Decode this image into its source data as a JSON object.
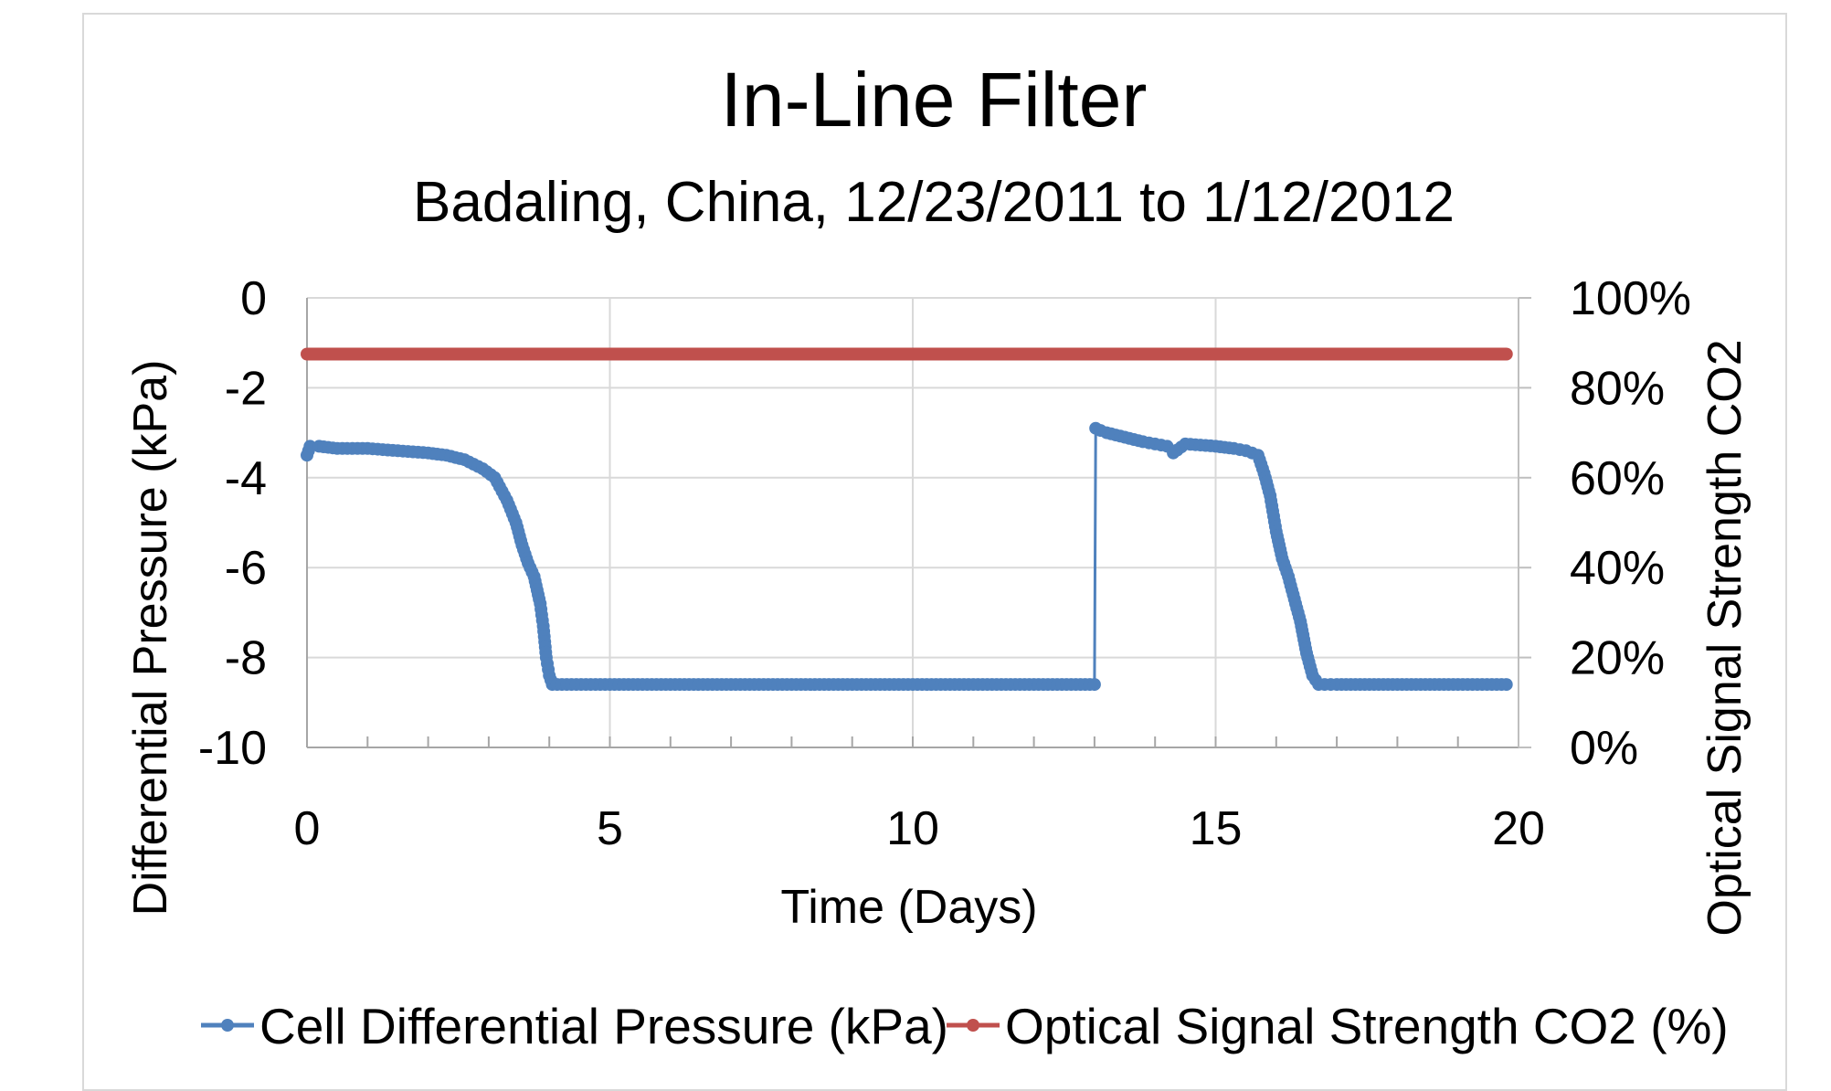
{
  "chart_data": {
    "type": "line",
    "title": "In-Line Filter",
    "subtitle": "Badaling, China, 12/23/2011 to 1/12/2012",
    "xlabel": "Time (Days)",
    "ylabel": "Differential Pressure (kPa)",
    "y2label": "Optical Signal Strength CO2",
    "xlim": [
      0,
      20
    ],
    "ylim": [
      -10,
      0
    ],
    "y2lim": [
      0,
      100
    ],
    "x_ticks": [
      "0",
      "5",
      "10",
      "15",
      "20"
    ],
    "y_ticks": [
      "0",
      "-2",
      "-4",
      "-6",
      "-8",
      "-10"
    ],
    "y2_ticks": [
      "100%",
      "80%",
      "60%",
      "40%",
      "20%",
      "0%"
    ],
    "grid": true,
    "legend_position": "bottom",
    "series": [
      {
        "name": "Cell Differential Pressure (kPa)",
        "axis": "left",
        "color": "#4f81bd",
        "marker": "circle",
        "x": [
          0.0,
          0.05,
          0.2,
          0.5,
          1.0,
          1.5,
          2.0,
          2.3,
          2.6,
          2.9,
          3.1,
          3.3,
          3.45,
          3.55,
          3.65,
          3.75,
          3.85,
          3.9,
          3.95,
          4.0,
          4.05,
          5.0,
          7.0,
          9.0,
          11.0,
          12.0,
          13.0,
          13.02,
          13.1,
          13.2,
          13.5,
          13.8,
          14.0,
          14.2,
          14.3,
          14.5,
          15.0,
          15.3,
          15.5,
          15.7,
          15.8,
          15.9,
          16.0,
          16.1,
          16.2,
          16.3,
          16.4,
          16.5,
          16.6,
          16.7,
          17.0,
          18.0,
          19.0,
          19.8
        ],
        "y": [
          -3.5,
          -3.3,
          -3.3,
          -3.35,
          -3.35,
          -3.4,
          -3.45,
          -3.5,
          -3.6,
          -3.8,
          -4.0,
          -4.5,
          -5.0,
          -5.5,
          -5.9,
          -6.2,
          -6.8,
          -7.3,
          -8.0,
          -8.4,
          -8.6,
          -8.6,
          -8.6,
          -8.6,
          -8.6,
          -8.6,
          -8.6,
          -2.9,
          -2.95,
          -3.0,
          -3.1,
          -3.2,
          -3.25,
          -3.3,
          -3.45,
          -3.25,
          -3.3,
          -3.35,
          -3.4,
          -3.5,
          -3.9,
          -4.4,
          -5.2,
          -5.8,
          -6.2,
          -6.7,
          -7.2,
          -7.9,
          -8.4,
          -8.6,
          -8.6,
          -8.6,
          -8.6,
          -8.6
        ]
      },
      {
        "name": "Optical Signal Strength CO2 (%)",
        "axis": "right",
        "color": "#c0504d",
        "marker": "none",
        "x": [
          0.0,
          19.8
        ],
        "y": [
          87.5,
          87.5
        ]
      }
    ]
  }
}
